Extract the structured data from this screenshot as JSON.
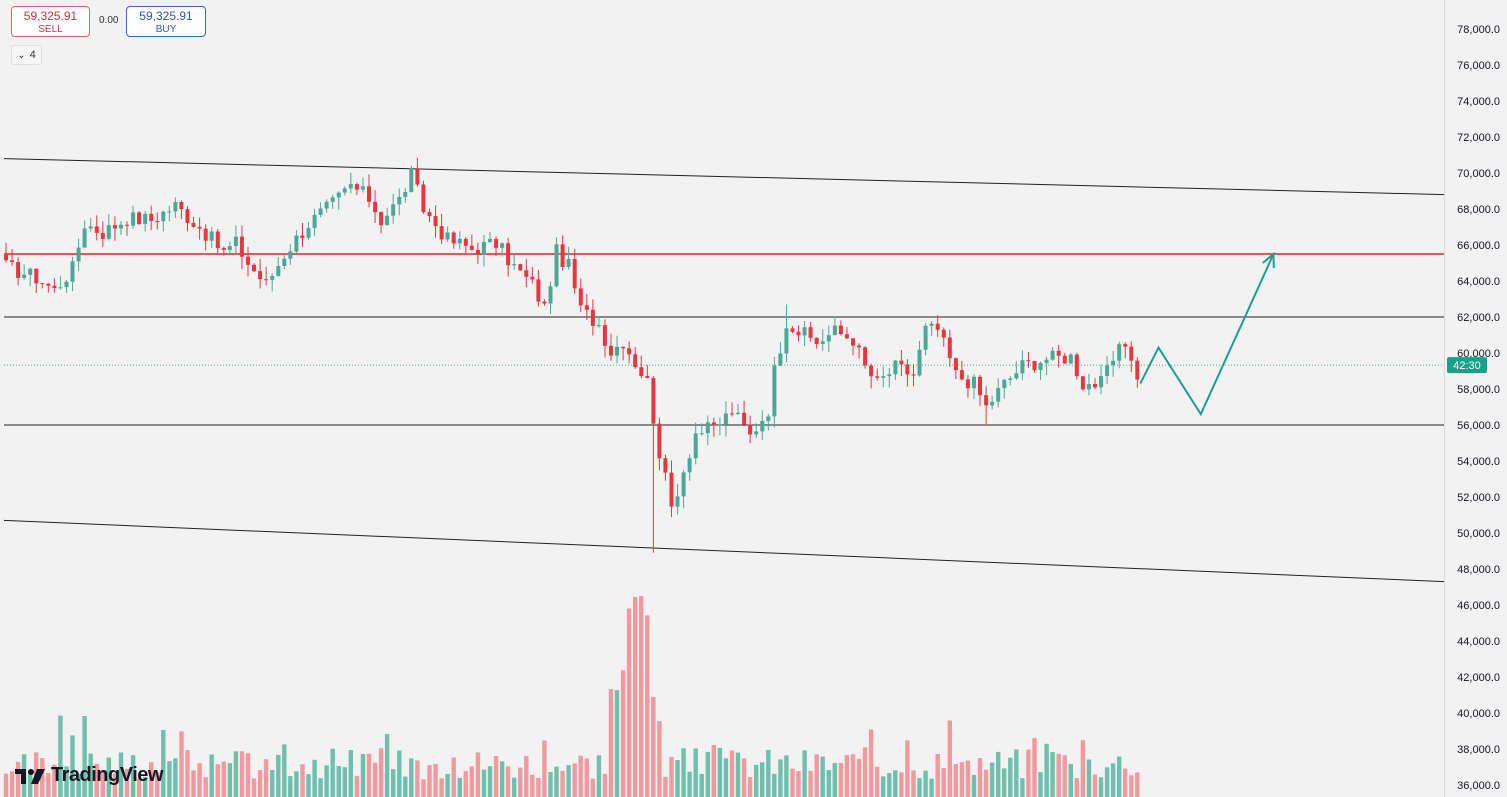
{
  "toolbar": {
    "sell_price": "59,325.91",
    "sell_label": "SELL",
    "spread": "0.00",
    "buy_price": "59,325.91",
    "buy_label": "BUY",
    "indicator_count": "4"
  },
  "branding": {
    "name": "TradingView"
  },
  "chart_data": {
    "type": "candlestick",
    "y_axis": {
      "ticks": [
        "78,000.0",
        "76,000.0",
        "74,000.0",
        "72,000.0",
        "70,000.0",
        "68,000.0",
        "66,000.0",
        "64,000.0",
        "62,000.0",
        "60,000.0",
        "58,000.0",
        "56,000.0",
        "54,000.0",
        "52,000.0",
        "50,000.0",
        "48,000.0",
        "46,000.0",
        "44,000.0",
        "42,000.0",
        "40,000.0",
        "38,000.0",
        "36,000.0"
      ],
      "range": [
        36000,
        79000
      ],
      "position": "right"
    },
    "current_price": 59325.91,
    "countdown_label": "42:30",
    "close_path": [
      [
        0,
        64800
      ],
      [
        5,
        64200
      ],
      [
        8,
        63500
      ],
      [
        11,
        64700
      ],
      [
        13,
        67200
      ],
      [
        16,
        66700
      ],
      [
        20,
        67500
      ],
      [
        24,
        67400
      ],
      [
        28,
        68200
      ],
      [
        32,
        67000
      ],
      [
        36,
        65600
      ],
      [
        38,
        66100
      ],
      [
        40,
        65000
      ],
      [
        43,
        63800
      ],
      [
        46,
        65500
      ],
      [
        50,
        67200
      ],
      [
        54,
        68300
      ],
      [
        57,
        69300
      ],
      [
        60,
        68600
      ],
      [
        62,
        67400
      ],
      [
        65,
        68500
      ],
      [
        67,
        69900
      ],
      [
        69,
        68000
      ],
      [
        73,
        66300
      ],
      [
        77,
        65800
      ],
      [
        81,
        66100
      ],
      [
        84,
        64800
      ],
      [
        87,
        63800
      ],
      [
        89,
        62500
      ],
      [
        91,
        65600
      ],
      [
        93,
        64800
      ],
      [
        95,
        62400
      ],
      [
        98,
        61600
      ],
      [
        100,
        60100
      ],
      [
        102,
        60700
      ],
      [
        104,
        59500
      ],
      [
        106,
        58400
      ],
      [
        108,
        54500
      ],
      [
        110,
        51400
      ],
      [
        112,
        53500
      ],
      [
        114,
        55600
      ],
      [
        117,
        55800
      ],
      [
        120,
        56800
      ],
      [
        123,
        55400
      ],
      [
        126,
        56900
      ],
      [
        127,
        59000
      ],
      [
        129,
        61800
      ],
      [
        131,
        61200
      ],
      [
        134,
        60600
      ],
      [
        137,
        61200
      ],
      [
        140,
        60800
      ],
      [
        142,
        59200
      ],
      [
        144,
        58300
      ],
      [
        147,
        59200
      ],
      [
        150,
        58800
      ],
      [
        152,
        61300
      ],
      [
        154,
        61300
      ],
      [
        157,
        58800
      ],
      [
        160,
        58300
      ],
      [
        162,
        57000
      ],
      [
        165,
        58300
      ],
      [
        168,
        59300
      ],
      [
        172,
        59700
      ],
      [
        176,
        59800
      ],
      [
        178,
        58300
      ],
      [
        181,
        58300
      ],
      [
        183,
        59600
      ],
      [
        185,
        60500
      ],
      [
        187,
        59300
      ]
    ],
    "volume_series": {
      "name": "Volume",
      "peak_value": 46500,
      "baseline": 36000
    },
    "annotations": {
      "resistance_horizontal": 65500,
      "mid_horizontal": 62000,
      "support_horizontal": 56000,
      "channel_upper": [
        [
          0,
          70800
        ],
        [
          245,
          68800
        ]
      ],
      "channel_lower": [
        [
          0,
          50700
        ],
        [
          245,
          47300
        ]
      ],
      "dotted_price_line": 59325.91,
      "forecast_path": [
        [
          187,
          58300
        ],
        [
          190,
          60300
        ],
        [
          197,
          56600
        ],
        [
          209,
          65500
        ]
      ]
    },
    "up_color": "#4aa896",
    "down_color": "#e8353f",
    "volume_up_color": "#6ec0ad",
    "volume_down_color": "#f09aa0",
    "forecast_color": "#19a08a",
    "resistance_color": "#e52228",
    "grid": false,
    "legend": "none"
  }
}
